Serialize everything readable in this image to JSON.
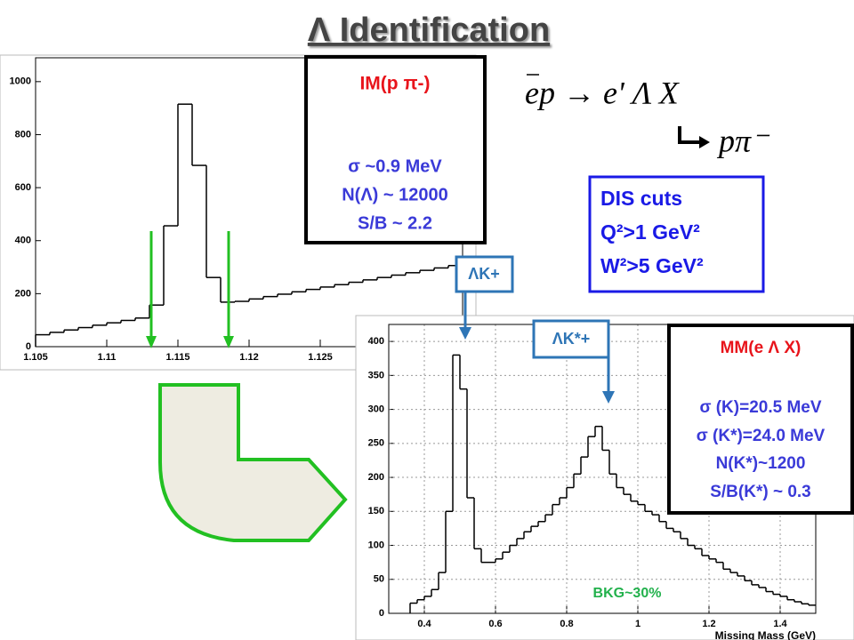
{
  "title": "Λ Identification",
  "chart_data": [
    {
      "type": "histogram",
      "bins": [
        1.105,
        1.106,
        1.107,
        1.108,
        1.109,
        1.11,
        1.111,
        1.112,
        1.113,
        1.114,
        1.115,
        1.116,
        1.117,
        1.118,
        1.119,
        1.12,
        1.121,
        1.122,
        1.123,
        1.124,
        1.125,
        1.126,
        1.127,
        1.128,
        1.129,
        1.13,
        1.131,
        1.132,
        1.133,
        1.134,
        1.135
      ],
      "values": [
        45,
        54,
        63,
        72,
        81,
        90,
        99,
        108,
        157,
        456,
        915,
        684,
        261,
        168,
        171,
        180,
        189,
        198,
        207,
        216,
        225,
        234,
        243,
        252,
        261,
        270,
        279,
        288,
        297,
        306
      ],
      "color": "#000000",
      "xlim": [
        1.105,
        1.135
      ],
      "ylim": [
        0,
        1090
      ],
      "xticks": [
        1.105,
        1.11,
        1.115,
        1.12,
        1.125
      ],
      "yticks": [
        0,
        200,
        400,
        600,
        800,
        1000
      ],
      "grid": false
    },
    {
      "type": "histogram",
      "x_label": "Missing Mass (GeV)",
      "bins": [
        0.36,
        0.38,
        0.4,
        0.42,
        0.44,
        0.46,
        0.48,
        0.5,
        0.52,
        0.54,
        0.56,
        0.58,
        0.6,
        0.62,
        0.64,
        0.66,
        0.68,
        0.7,
        0.72,
        0.74,
        0.76,
        0.78,
        0.8,
        0.82,
        0.84,
        0.86,
        0.88,
        0.9,
        0.92,
        0.94,
        0.96,
        0.98,
        1,
        1.02,
        1.04,
        1.06,
        1.08,
        1.1,
        1.12,
        1.14,
        1.16,
        1.18,
        1.2,
        1.22,
        1.24,
        1.26,
        1.28,
        1.3,
        1.32,
        1.34,
        1.36,
        1.38,
        1.4,
        1.42,
        1.44,
        1.46,
        1.48,
        1.5
      ],
      "values": [
        15,
        20,
        25,
        35,
        60,
        150,
        380,
        330,
        170,
        95,
        75,
        75,
        80,
        90,
        100,
        110,
        120,
        128,
        135,
        145,
        160,
        170,
        185,
        205,
        230,
        260,
        275,
        240,
        205,
        185,
        175,
        165,
        160,
        150,
        145,
        135,
        125,
        120,
        110,
        100,
        95,
        85,
        80,
        75,
        65,
        60,
        55,
        48,
        42,
        38,
        32,
        28,
        25,
        20,
        17,
        14,
        12
      ],
      "color": "#000000",
      "xlim": [
        0.3,
        1.5
      ],
      "ylim": [
        0,
        425
      ],
      "xticks": [
        0.4,
        0.6,
        0.8,
        1,
        1.2,
        1.4
      ],
      "yticks": [
        0,
        50,
        100,
        150,
        200,
        250,
        300,
        350,
        400
      ],
      "grid": true
    }
  ],
  "im_box": {
    "heading": "IM(p π-)",
    "lines": [
      "σ ~0.9 MeV",
      "N(Λ) ~ 12000",
      "S/B ~ 2.2"
    ]
  },
  "reaction": {
    "main": "ep → e' Λ X",
    "decay": "pπ⁻"
  },
  "dis_box": {
    "lines": [
      "DIS cuts",
      "Q²>1 GeV²",
      "W²>5 GeV²"
    ]
  },
  "peak_labels": [
    "ΛK+",
    "ΛK*+"
  ],
  "mm_box": {
    "heading": "MM(e Λ X)",
    "lines": [
      "σ (K)=20.5 MeV",
      "σ (K*)=24.0  MeV",
      "N(K*)~1200",
      "S/B(K*) ~ 0.3"
    ]
  },
  "background_note": "BKG~30%"
}
